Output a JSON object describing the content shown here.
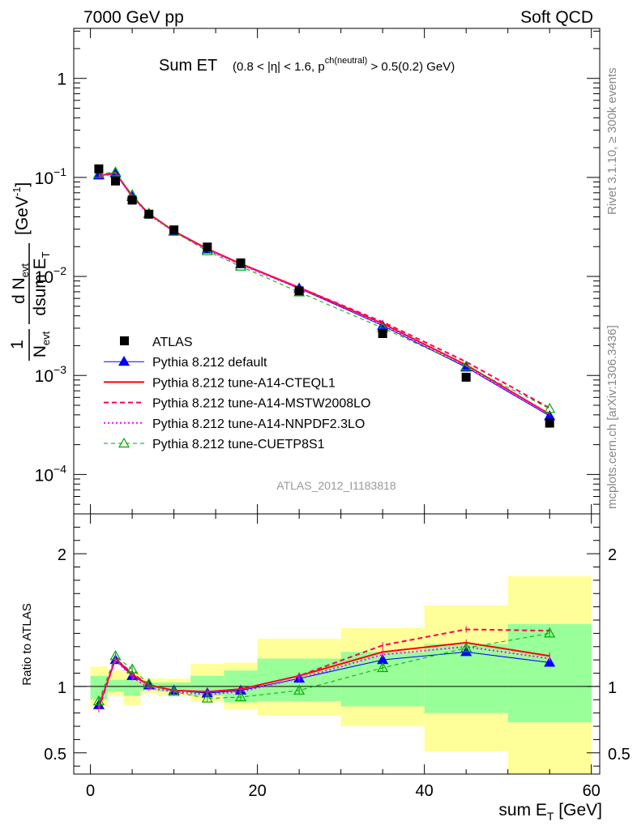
{
  "header": {
    "left": "7000 GeV pp",
    "right": "Soft QCD"
  },
  "side_labels": {
    "rivet": "Rivet 3.1.10, ≥ 300k events",
    "mcplots": "mcplots.cern.ch [arXiv:1306.3436]"
  },
  "chart_data": {
    "type": "line",
    "title_main": "Sum ET",
    "title_cut_a": "(0.8 < |η| < 1.6, p",
    "title_cut_sup": "ch(neutral)",
    "title_cut_b": " > 0.5(0.2) GeV)",
    "watermark": "ATLAS_2012_I1183818",
    "xlabel_main": "sum E",
    "xlabel_sub": "T",
    "xlabel_unit": " [GeV]",
    "ylabel_top": "1",
    "ylabel_bottom": "N",
    "ylabel_bottom_sub": "evt",
    "ylabel_frac_num": "d N",
    "ylabel_frac_num_sub": "evt",
    "ylabel_frac_den": "dsum E",
    "ylabel_frac_den_sub": "T",
    "ylabel_unit": "[GeV",
    "ylabel_unit_sup": "-1",
    "ylabel_unit_end": "]",
    "ratio_ylabel": "Ratio to ATLAS",
    "xlim": [
      -2,
      61
    ],
    "ylim_log": [
      4e-05,
      3.2
    ],
    "ratio_ylim": [
      0.34,
      2.3
    ],
    "x_ticks": [
      0,
      20,
      40,
      60
    ],
    "x_tick_labels": [
      "0",
      "20",
      "40",
      "60"
    ],
    "y_ticks": [
      {
        "value": 1,
        "base": "1",
        "exp": ""
      },
      {
        "value": 0.1,
        "base": "10",
        "exp": "−1"
      },
      {
        "value": 0.01,
        "base": "10",
        "exp": "−2"
      },
      {
        "value": 0.001,
        "base": "10",
        "exp": "−3"
      },
      {
        "value": 0.0001,
        "base": "10",
        "exp": "−4"
      }
    ],
    "ratio_ticks": [
      {
        "value": 2,
        "label": "2"
      },
      {
        "value": 1,
        "label": "1"
      },
      {
        "value": 0.5,
        "label": "0.5"
      }
    ],
    "bins": [
      {
        "lo": 0,
        "hi": 2,
        "inner": [
          0.9,
          1.08
        ],
        "outer": [
          0.85,
          1.15
        ]
      },
      {
        "lo": 2,
        "hi": 4,
        "inner": [
          0.96,
          1.05
        ],
        "outer": [
          0.93,
          1.12
        ]
      },
      {
        "lo": 4,
        "hi": 6,
        "inner": [
          0.93,
          1.05
        ],
        "outer": [
          0.86,
          1.11
        ]
      },
      {
        "lo": 6,
        "hi": 8,
        "inner": [
          0.97,
          1.03
        ],
        "outer": [
          0.95,
          1.06
        ]
      },
      {
        "lo": 8,
        "hi": 12,
        "inner": [
          0.96,
          1.03
        ],
        "outer": [
          0.93,
          1.06
        ]
      },
      {
        "lo": 12,
        "hi": 16,
        "inner": [
          0.93,
          1.08
        ],
        "outer": [
          0.89,
          1.17
        ]
      },
      {
        "lo": 16,
        "hi": 20,
        "inner": [
          0.88,
          1.12
        ],
        "outer": [
          0.83,
          1.18
        ]
      },
      {
        "lo": 20,
        "hi": 30,
        "inner": [
          0.89,
          1.21
        ],
        "outer": [
          0.78,
          1.36
        ]
      },
      {
        "lo": 30,
        "hi": 40,
        "inner": [
          0.85,
          1.26
        ],
        "outer": [
          0.7,
          1.44
        ]
      },
      {
        "lo": 40,
        "hi": 50,
        "inner": [
          0.8,
          1.32
        ],
        "outer": [
          0.51,
          1.61
        ]
      },
      {
        "lo": 50,
        "hi": 60,
        "inner": [
          0.73,
          1.47
        ],
        "outer": [
          0.34,
          1.83
        ]
      }
    ],
    "data": {
      "name": "ATLAS",
      "x": [
        1,
        3,
        5,
        7,
        10,
        14,
        18,
        25,
        35,
        45,
        55
      ],
      "y": [
        0.122,
        0.092,
        0.059,
        0.0425,
        0.0295,
        0.0198,
        0.0137,
        0.00715,
        0.00265,
        0.00096,
        0.00033
      ]
    },
    "series": [
      {
        "name": "Pythia 8.212 default",
        "color": "#0000ff",
        "dash": "",
        "width": 1,
        "marker": "triangle-filled",
        "ratio": [
          0.86,
          1.2,
          1.08,
          1.01,
          0.97,
          0.95,
          0.97,
          1.06,
          1.2,
          1.26,
          1.18
        ]
      },
      {
        "name": "Pythia 8.212 tune-A14-CTEQL1",
        "color": "#ff0000",
        "dash": "",
        "width": 2,
        "marker": "",
        "ratio": [
          0.85,
          1.21,
          1.09,
          1.01,
          0.97,
          0.96,
          0.98,
          1.08,
          1.26,
          1.33,
          1.23
        ]
      },
      {
        "name": "Pythia 8.212 tune-A14-MSTW2008LO",
        "color": "#ff0055",
        "dash": "6,4",
        "width": 2,
        "marker": "",
        "ratio": [
          0.83,
          1.21,
          1.1,
          1.01,
          0.97,
          0.96,
          0.98,
          1.08,
          1.31,
          1.43,
          1.42
        ]
      },
      {
        "name": "Pythia 8.212 tune-A14-NNPDF2.3LO",
        "color": "#ff00ff",
        "dash": "2,3",
        "width": 2,
        "marker": "",
        "ratio": [
          0.86,
          1.2,
          1.07,
          0.99,
          0.96,
          0.94,
          0.96,
          1.06,
          1.24,
          1.3,
          1.21
        ]
      },
      {
        "name": "Pythia 8.212 tune-CUETP8S1",
        "color": "#00aa00",
        "dash": "5,4",
        "width": 1,
        "marker": "triangle-open",
        "ratio": [
          0.89,
          1.23,
          1.13,
          1.02,
          0.96,
          0.91,
          0.92,
          0.97,
          1.14,
          1.29,
          1.4
        ]
      }
    ]
  }
}
